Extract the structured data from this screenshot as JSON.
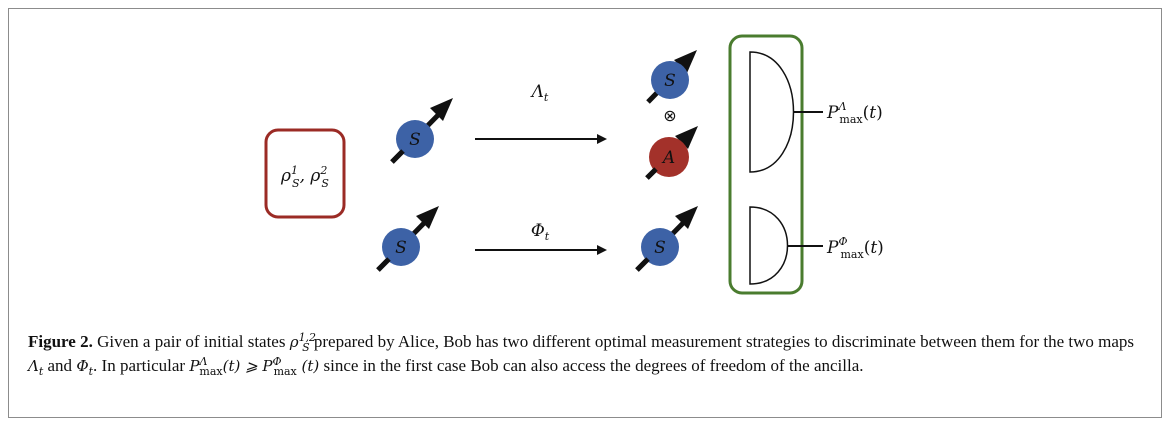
{
  "diagram": {
    "initial_states": "ρ¹_S, ρ²_S",
    "system_label": "S",
    "ancilla_label": "A",
    "tensor_symbol": "⊗",
    "map_lambda": "Λ_t",
    "map_phi": "Φ_t",
    "output_lambda": "P^Λ_max(t)",
    "output_phi": "P^Φ_max(t)",
    "colors": {
      "system": "#3d62a6",
      "ancilla": "#a3312a",
      "initial_box": "#9b2b25",
      "measurement_box": "#4a7c2f"
    }
  },
  "caption": {
    "label": "Figure 2.",
    "text_1": " Given a pair of initial states ",
    "text_2": " prepared by Alice, Bob has two different optimal measurement strategies to discriminate between them for the two maps ",
    "text_3": " and ",
    "text_4": ". In particular ",
    "text_5": " since in the first case Bob can also access the degrees of freedom of the ancilla."
  }
}
